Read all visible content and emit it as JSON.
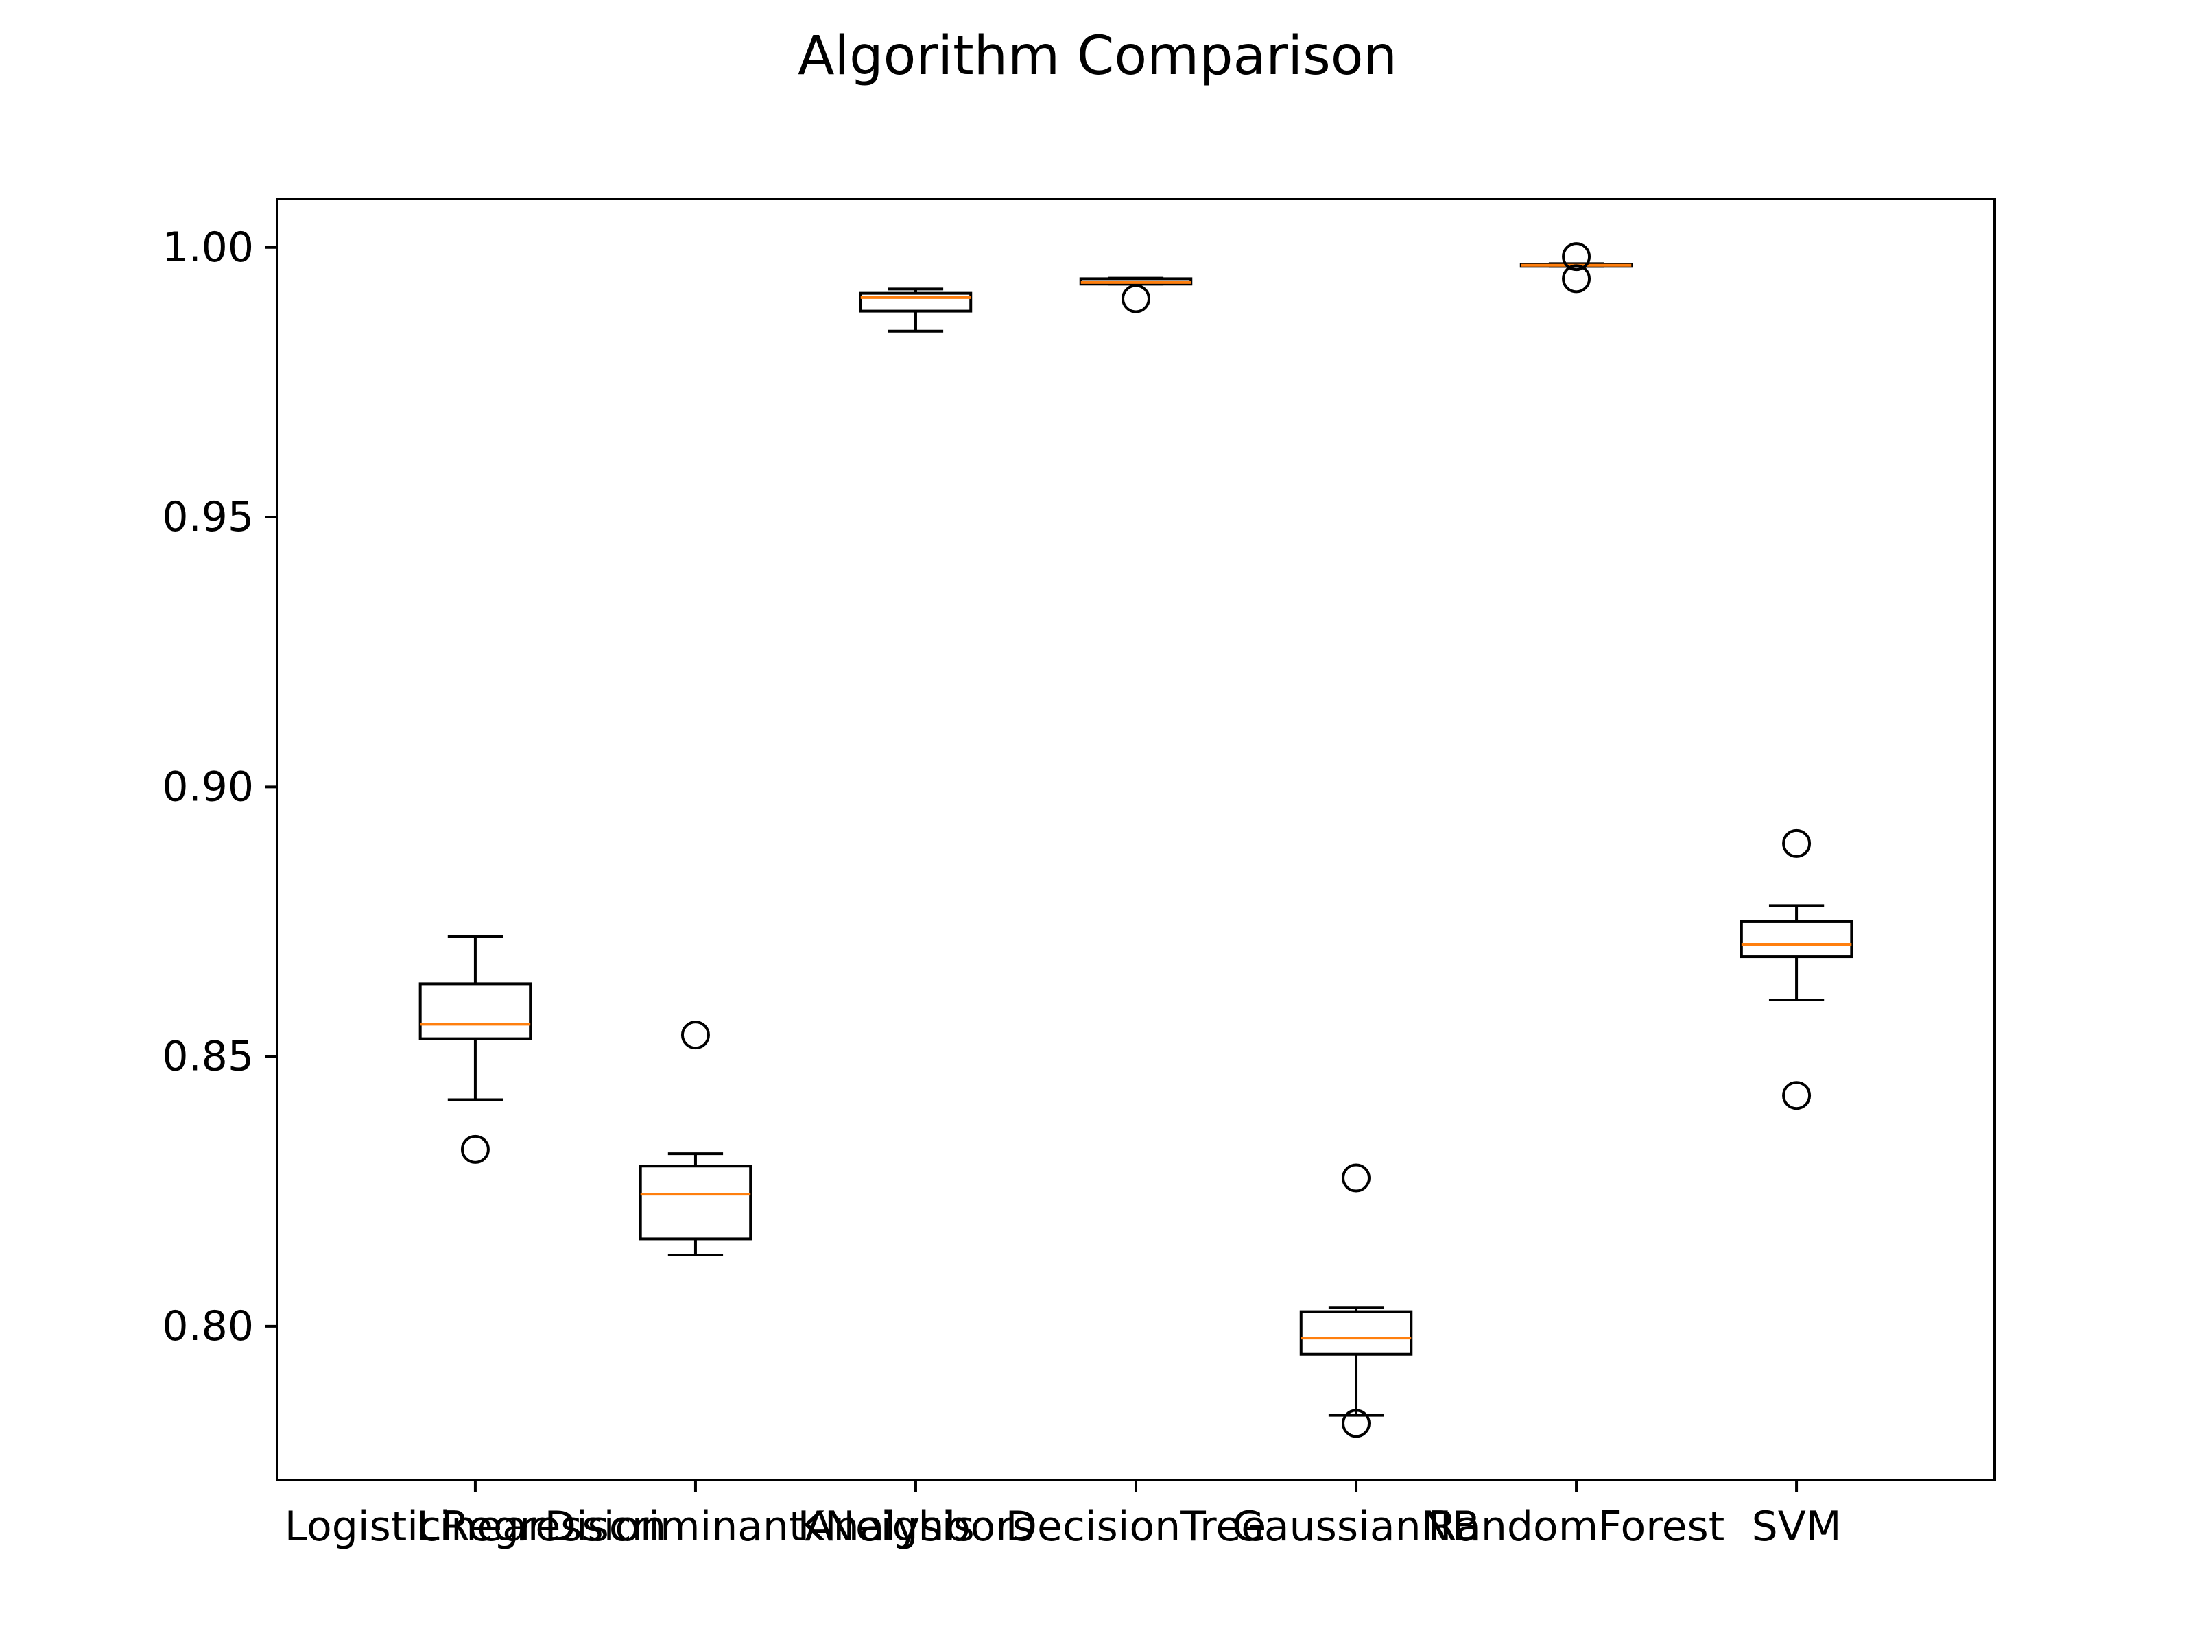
{
  "chart_data": {
    "type": "box",
    "title": "Algorithm Comparison",
    "xlabel": "",
    "ylabel": "",
    "ylim": [
      0.7715,
      1.009
    ],
    "yticks": [
      "0.80",
      "0.85",
      "0.90",
      "0.95",
      "1.00"
    ],
    "ytick_values": [
      0.8,
      0.85,
      0.9,
      0.95,
      1.0
    ],
    "grid": false,
    "categories": [
      "LogisticRegression",
      "LinearDiscriminantAnalysis",
      "KNeighbors",
      "DecisionTree",
      "GaussianNB",
      "RandomForest",
      "SVM"
    ],
    "boxes": [
      {
        "whisker_low": 0.842,
        "q1": 0.8533,
        "median": 0.856,
        "q3": 0.8635,
        "whisker_high": 0.8723,
        "outliers": [
          0.8328
        ]
      },
      {
        "whisker_low": 0.8132,
        "q1": 0.8162,
        "median": 0.8245,
        "q3": 0.8297,
        "whisker_high": 0.832,
        "outliers": [
          0.854
        ]
      },
      {
        "whisker_low": 0.9845,
        "q1": 0.9882,
        "median": 0.9907,
        "q3": 0.9915,
        "whisker_high": 0.9923,
        "outliers": []
      },
      {
        "whisker_low": 0.9932,
        "q1": 0.9932,
        "median": 0.9935,
        "q3": 0.9942,
        "whisker_high": 0.9943,
        "outliers": [
          0.9905
        ]
      },
      {
        "whisker_low": 0.7835,
        "q1": 0.7948,
        "median": 0.7978,
        "q3": 0.8027,
        "whisker_high": 0.8035,
        "outliers": [
          0.782,
          0.8275
        ]
      },
      {
        "whisker_low": 0.9965,
        "q1": 0.9965,
        "median": 0.9967,
        "q3": 0.9969,
        "whisker_high": 0.997,
        "outliers": [
          0.9983,
          0.9942
        ]
      },
      {
        "whisker_low": 0.8605,
        "q1": 0.8685,
        "median": 0.8708,
        "q3": 0.875,
        "whisker_high": 0.878,
        "outliers": [
          0.8895,
          0.8428
        ]
      }
    ],
    "colors": {
      "box": "#000000",
      "median": "#ff7f0e",
      "outlier": "#000000",
      "axes": "#000000"
    }
  }
}
